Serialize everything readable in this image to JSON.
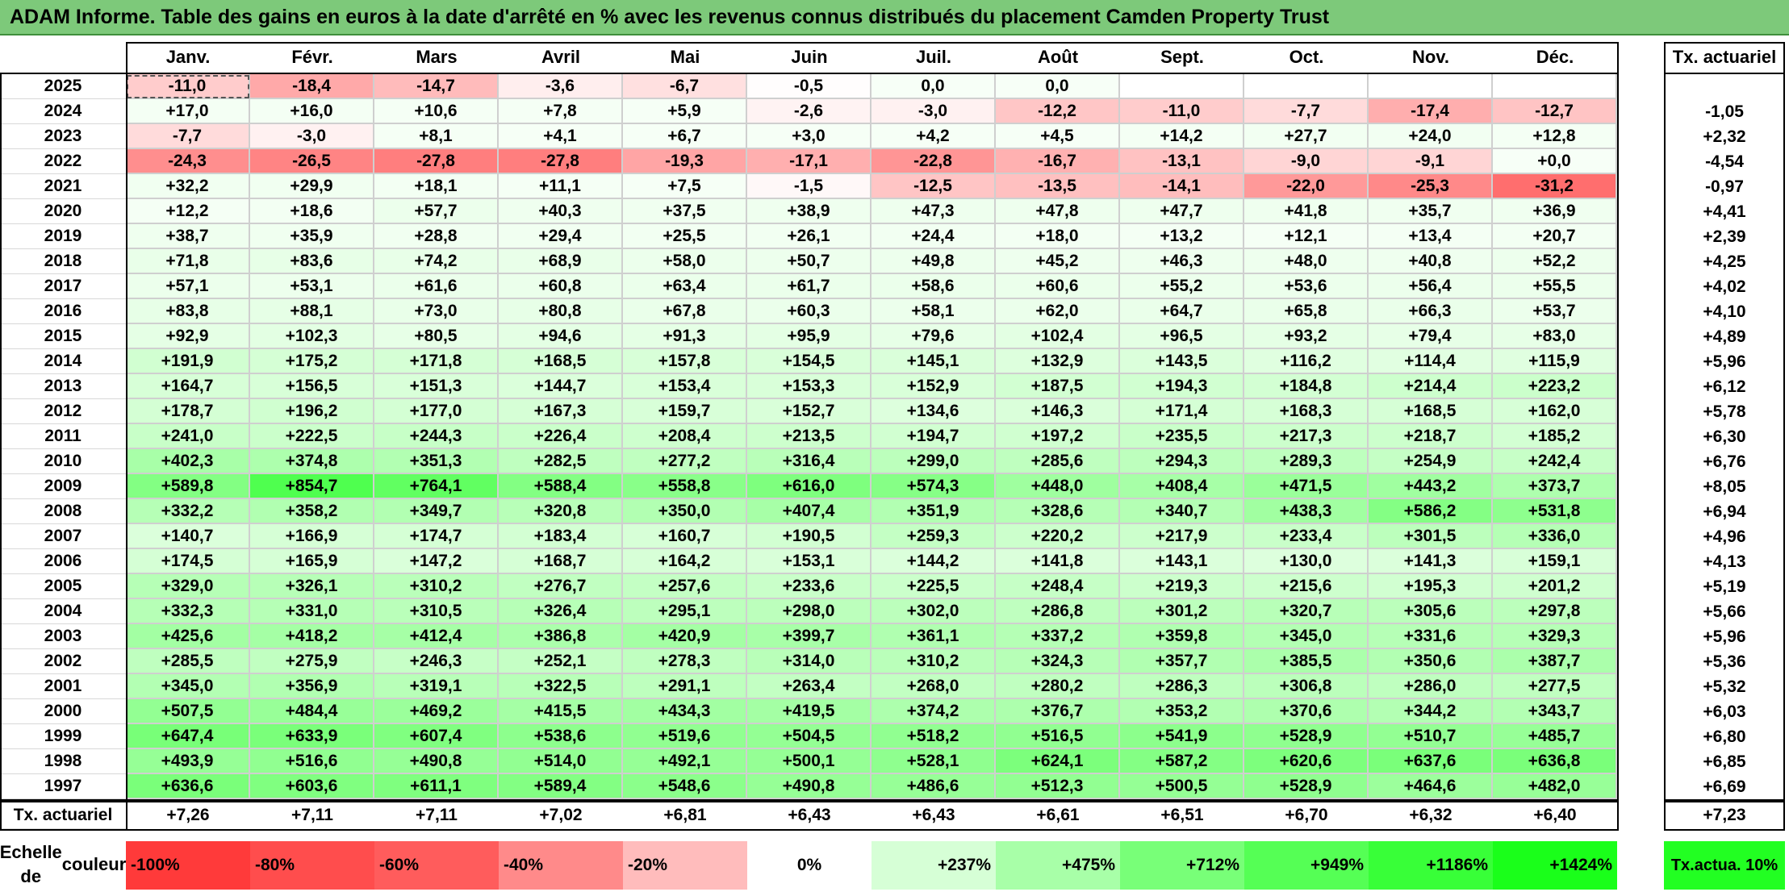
{
  "title": "ADAM Informe. Table des gains en euros à la date d'arrêté en % avec les revenus connus distribués du placement Camden Property Trust",
  "months": [
    "Janv.",
    "Févr.",
    "Mars",
    "Avril",
    "Mai",
    "Juin",
    "Juil.",
    "Août",
    "Sept.",
    "Oct.",
    "Nov.",
    "Déc."
  ],
  "tx_header": "Tx. actuariel",
  "rows": [
    {
      "year": "2025",
      "values": [
        "-11,0",
        "-18,4",
        "-14,7",
        "-3,6",
        "-6,7",
        "-0,5",
        "0,0",
        "0,0",
        "",
        "",
        "",
        ""
      ],
      "tx": ""
    },
    {
      "year": "2024",
      "values": [
        "+17,0",
        "+16,0",
        "+10,6",
        "+7,8",
        "+5,9",
        "-2,6",
        "-3,0",
        "-12,2",
        "-11,0",
        "-7,7",
        "-17,4",
        "-12,7"
      ],
      "tx": "-1,05"
    },
    {
      "year": "2023",
      "values": [
        "-7,7",
        "-3,0",
        "+8,1",
        "+4,1",
        "+6,7",
        "+3,0",
        "+4,2",
        "+4,5",
        "+14,2",
        "+27,7",
        "+24,0",
        "+12,8"
      ],
      "tx": "+2,32"
    },
    {
      "year": "2022",
      "values": [
        "-24,3",
        "-26,5",
        "-27,8",
        "-27,8",
        "-19,3",
        "-17,1",
        "-22,8",
        "-16,7",
        "-13,1",
        "-9,0",
        "-9,1",
        "+0,0"
      ],
      "tx": "-4,54"
    },
    {
      "year": "2021",
      "values": [
        "+32,2",
        "+29,9",
        "+18,1",
        "+11,1",
        "+7,5",
        "-1,5",
        "-12,5",
        "-13,5",
        "-14,1",
        "-22,0",
        "-25,3",
        "-31,2"
      ],
      "tx": "-0,97"
    },
    {
      "year": "2020",
      "values": [
        "+12,2",
        "+18,6",
        "+57,7",
        "+40,3",
        "+37,5",
        "+38,9",
        "+47,3",
        "+47,8",
        "+47,7",
        "+41,8",
        "+35,7",
        "+36,9"
      ],
      "tx": "+4,41"
    },
    {
      "year": "2019",
      "values": [
        "+38,7",
        "+35,9",
        "+28,8",
        "+29,4",
        "+25,5",
        "+26,1",
        "+24,4",
        "+18,0",
        "+13,2",
        "+12,1",
        "+13,4",
        "+20,7"
      ],
      "tx": "+2,39"
    },
    {
      "year": "2018",
      "values": [
        "+71,8",
        "+83,6",
        "+74,2",
        "+68,9",
        "+58,0",
        "+50,7",
        "+49,8",
        "+45,2",
        "+46,3",
        "+48,0",
        "+40,8",
        "+52,2"
      ],
      "tx": "+4,25"
    },
    {
      "year": "2017",
      "values": [
        "+57,1",
        "+53,1",
        "+61,6",
        "+60,8",
        "+63,4",
        "+61,7",
        "+58,6",
        "+60,6",
        "+55,2",
        "+53,6",
        "+56,4",
        "+55,5"
      ],
      "tx": "+4,02"
    },
    {
      "year": "2016",
      "values": [
        "+83,8",
        "+88,1",
        "+73,0",
        "+80,8",
        "+67,8",
        "+60,3",
        "+58,1",
        "+62,0",
        "+64,7",
        "+65,8",
        "+66,3",
        "+53,7"
      ],
      "tx": "+4,10"
    },
    {
      "year": "2015",
      "values": [
        "+92,9",
        "+102,3",
        "+80,5",
        "+94,6",
        "+91,3",
        "+95,9",
        "+79,6",
        "+102,4",
        "+96,5",
        "+93,2",
        "+79,4",
        "+83,0"
      ],
      "tx": "+4,89"
    },
    {
      "year": "2014",
      "values": [
        "+191,9",
        "+175,2",
        "+171,8",
        "+168,5",
        "+157,8",
        "+154,5",
        "+145,1",
        "+132,9",
        "+143,5",
        "+116,2",
        "+114,4",
        "+115,9"
      ],
      "tx": "+5,96"
    },
    {
      "year": "2013",
      "values": [
        "+164,7",
        "+156,5",
        "+151,3",
        "+144,7",
        "+153,4",
        "+153,3",
        "+152,9",
        "+187,5",
        "+194,3",
        "+184,8",
        "+214,4",
        "+223,2"
      ],
      "tx": "+6,12"
    },
    {
      "year": "2012",
      "values": [
        "+178,7",
        "+196,2",
        "+177,0",
        "+167,3",
        "+159,7",
        "+152,7",
        "+134,6",
        "+146,3",
        "+171,4",
        "+168,3",
        "+168,5",
        "+162,0"
      ],
      "tx": "+5,78"
    },
    {
      "year": "2011",
      "values": [
        "+241,0",
        "+222,5",
        "+244,3",
        "+226,4",
        "+208,4",
        "+213,5",
        "+194,7",
        "+197,2",
        "+235,5",
        "+217,3",
        "+218,7",
        "+185,2"
      ],
      "tx": "+6,30"
    },
    {
      "year": "2010",
      "values": [
        "+402,3",
        "+374,8",
        "+351,3",
        "+282,5",
        "+277,2",
        "+316,4",
        "+299,0",
        "+285,6",
        "+294,3",
        "+289,3",
        "+254,9",
        "+242,4"
      ],
      "tx": "+6,76"
    },
    {
      "year": "2009",
      "values": [
        "+589,8",
        "+854,7",
        "+764,1",
        "+588,4",
        "+558,8",
        "+616,0",
        "+574,3",
        "+448,0",
        "+408,4",
        "+471,5",
        "+443,2",
        "+373,7"
      ],
      "tx": "+8,05"
    },
    {
      "year": "2008",
      "values": [
        "+332,2",
        "+358,2",
        "+349,7",
        "+320,8",
        "+350,0",
        "+407,4",
        "+351,9",
        "+328,6",
        "+340,7",
        "+438,3",
        "+586,2",
        "+531,8"
      ],
      "tx": "+6,94"
    },
    {
      "year": "2007",
      "values": [
        "+140,7",
        "+166,9",
        "+174,7",
        "+183,4",
        "+160,7",
        "+190,5",
        "+259,3",
        "+220,2",
        "+217,9",
        "+233,4",
        "+301,5",
        "+336,0"
      ],
      "tx": "+4,96"
    },
    {
      "year": "2006",
      "values": [
        "+174,5",
        "+165,9",
        "+147,2",
        "+168,7",
        "+164,2",
        "+153,1",
        "+144,2",
        "+141,8",
        "+143,1",
        "+130,0",
        "+141,3",
        "+159,1"
      ],
      "tx": "+4,13"
    },
    {
      "year": "2005",
      "values": [
        "+329,0",
        "+326,1",
        "+310,2",
        "+276,7",
        "+257,6",
        "+233,6",
        "+225,5",
        "+248,4",
        "+219,3",
        "+215,6",
        "+195,3",
        "+201,2"
      ],
      "tx": "+5,19"
    },
    {
      "year": "2004",
      "values": [
        "+332,3",
        "+331,0",
        "+310,5",
        "+326,4",
        "+295,1",
        "+298,0",
        "+302,0",
        "+286,8",
        "+301,2",
        "+320,7",
        "+305,6",
        "+297,8"
      ],
      "tx": "+5,66"
    },
    {
      "year": "2003",
      "values": [
        "+425,6",
        "+418,2",
        "+412,4",
        "+386,8",
        "+420,9",
        "+399,7",
        "+361,1",
        "+337,2",
        "+359,8",
        "+345,0",
        "+331,6",
        "+329,3"
      ],
      "tx": "+5,96"
    },
    {
      "year": "2002",
      "values": [
        "+285,5",
        "+275,9",
        "+246,3",
        "+252,1",
        "+278,3",
        "+314,0",
        "+310,2",
        "+324,3",
        "+357,7",
        "+385,5",
        "+350,6",
        "+387,7"
      ],
      "tx": "+5,36"
    },
    {
      "year": "2001",
      "values": [
        "+345,0",
        "+356,9",
        "+319,1",
        "+322,5",
        "+291,1",
        "+263,4",
        "+268,0",
        "+280,2",
        "+286,3",
        "+306,8",
        "+286,0",
        "+277,5"
      ],
      "tx": "+5,32"
    },
    {
      "year": "2000",
      "values": [
        "+507,5",
        "+484,4",
        "+469,2",
        "+415,5",
        "+434,3",
        "+419,5",
        "+374,2",
        "+376,7",
        "+353,2",
        "+370,6",
        "+344,2",
        "+343,7"
      ],
      "tx": "+6,03"
    },
    {
      "year": "1999",
      "values": [
        "+647,4",
        "+633,9",
        "+607,4",
        "+538,6",
        "+519,6",
        "+504,5",
        "+518,2",
        "+516,5",
        "+541,9",
        "+528,9",
        "+510,7",
        "+485,7"
      ],
      "tx": "+6,80"
    },
    {
      "year": "1998",
      "values": [
        "+493,9",
        "+516,6",
        "+490,8",
        "+514,0",
        "+492,1",
        "+500,1",
        "+528,1",
        "+624,1",
        "+587,2",
        "+620,6",
        "+637,6",
        "+636,8"
      ],
      "tx": "+6,85"
    },
    {
      "year": "1997",
      "values": [
        "+636,6",
        "+603,6",
        "+611,1",
        "+589,4",
        "+548,6",
        "+490,8",
        "+486,6",
        "+512,3",
        "+500,5",
        "+528,9",
        "+464,6",
        "+482,0"
      ],
      "tx": "+6,69"
    }
  ],
  "footer": {
    "label": "Tx. actuariel",
    "values": [
      "+7,26",
      "+7,11",
      "+7,11",
      "+7,02",
      "+6,81",
      "+6,43",
      "+6,43",
      "+6,61",
      "+6,51",
      "+6,70",
      "+6,32",
      "+6,40"
    ],
    "total": "+7,23"
  },
  "legend": {
    "label_line1": "Echelle de",
    "label_line2": "couleur",
    "steps": [
      {
        "text": "-100%",
        "color": "#ff3a3a",
        "align": "left"
      },
      {
        "text": "-80%",
        "color": "#ff4d4d",
        "align": "left"
      },
      {
        "text": "-60%",
        "color": "#ff5c5c",
        "align": "left"
      },
      {
        "text": "-40%",
        "color": "#ff8a8a",
        "align": "left"
      },
      {
        "text": "-20%",
        "color": "#ffbcbc",
        "align": "left"
      },
      {
        "text": "0%",
        "color": "#ffffff",
        "align": "center"
      },
      {
        "text": "+237%",
        "color": "#d6ffd6",
        "align": "right"
      },
      {
        "text": "+475%",
        "color": "#a8ffa8",
        "align": "right"
      },
      {
        "text": "+712%",
        "color": "#78ff78",
        "align": "right"
      },
      {
        "text": "+949%",
        "color": "#55ff55",
        "align": "right"
      },
      {
        "text": "+1186%",
        "color": "#38ff38",
        "align": "right"
      },
      {
        "text": "+1424%",
        "color": "#1aff1a",
        "align": "right"
      }
    ],
    "final_line1": "Tx.",
    "final_line2": "actua. 10%",
    "final_color": "#22ff22"
  },
  "colors": {
    "title_bg": "#7dc97a",
    "negative_full": "#ff5c5c",
    "positive_full": "#22ff22"
  }
}
